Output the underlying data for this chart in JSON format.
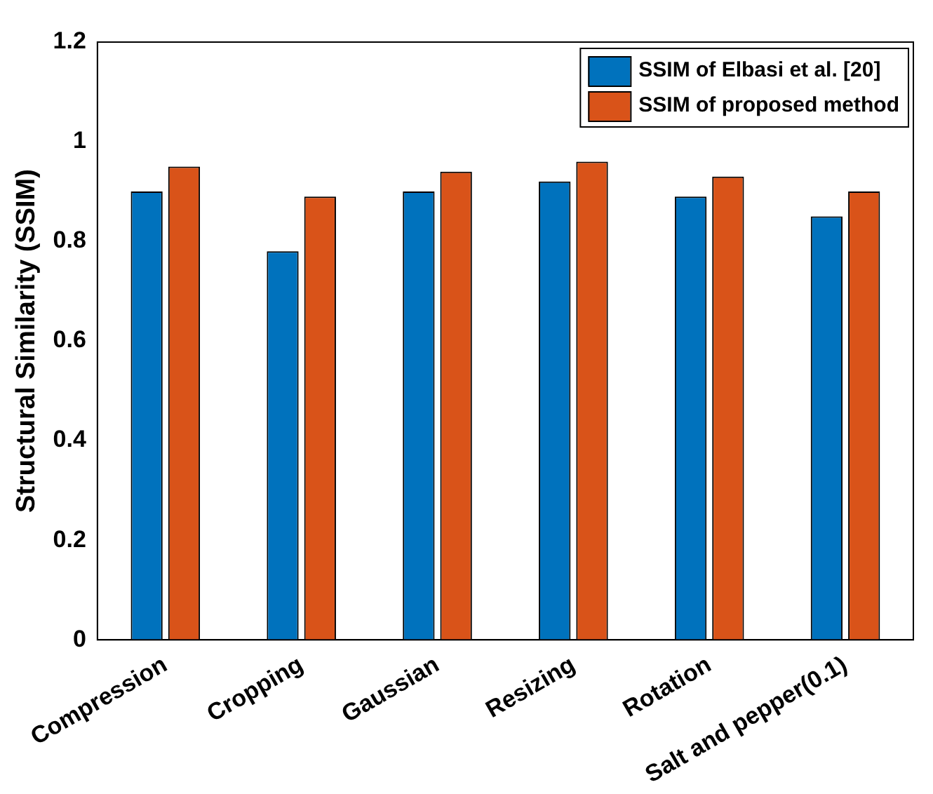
{
  "chart_data": {
    "type": "bar",
    "ylabel": "Structural Similarity (SSIM)",
    "categories": [
      "Compression",
      "Cropping",
      "Gaussian",
      "Resizing",
      "Rotation",
      "Salt and pepper(0.1)"
    ],
    "series": [
      {
        "name": "SSIM of Elbasi et al. [20]",
        "color": "#0072bd",
        "values": [
          0.9,
          0.78,
          0.9,
          0.92,
          0.89,
          0.85
        ]
      },
      {
        "name": "SSIM of proposed method",
        "color": "#d95319",
        "values": [
          0.95,
          0.89,
          0.94,
          0.96,
          0.93,
          0.9
        ]
      }
    ],
    "ylim": [
      0,
      1.2
    ],
    "yticks": [
      0,
      0.2,
      0.4,
      0.6,
      0.8,
      1,
      1.2
    ],
    "grid": false,
    "legend": "top right"
  }
}
